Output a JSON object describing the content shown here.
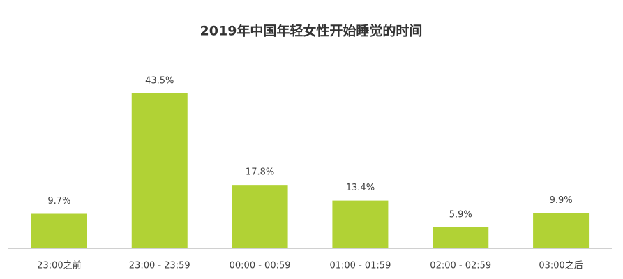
{
  "chart_data": {
    "type": "bar",
    "title": "2019年中国年轻女性开始睡觉的时间",
    "categories": [
      "23:00之前",
      "23:00 - 23:59",
      "00:00 - 00:59",
      "01:00 - 01:59",
      "02:00 - 02:59",
      "03:00之后"
    ],
    "values": [
      9.7,
      43.5,
      17.8,
      13.4,
      5.9,
      9.9
    ],
    "value_labels": [
      "9.7%",
      "43.5%",
      "17.8%",
      "13.4%",
      "5.9%",
      "9.9%"
    ],
    "color": "#b1d235"
  }
}
